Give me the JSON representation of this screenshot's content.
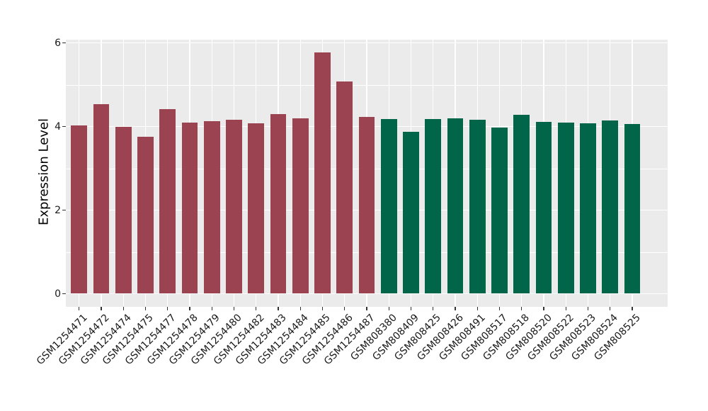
{
  "figure": {
    "background": "#FFFFFF",
    "title": ""
  },
  "chart_data": {
    "type": "bar",
    "title": "",
    "xlabel": "",
    "ylabel": "Expression Level",
    "legend": "none",
    "grid": "on",
    "panel_background": "#EBEBEB",
    "grid_color": "#FFFFFF",
    "axis_text_color": "#1A1A1A",
    "tick_color": "#333333",
    "ylim": [
      -0.31,
      6.07
    ],
    "yticks": [
      0,
      2,
      4,
      6
    ],
    "yminor": [
      1,
      3,
      5
    ],
    "categories": [
      "GSM1254471",
      "GSM1254472",
      "GSM1254474",
      "GSM1254475",
      "GSM1254477",
      "GSM1254478",
      "GSM1254479",
      "GSM1254480",
      "GSM1254482",
      "GSM1254483",
      "GSM1254484",
      "GSM1254485",
      "GSM1254486",
      "GSM1254487",
      "GSM808380",
      "GSM808409",
      "GSM808425",
      "GSM808426",
      "GSM808491",
      "GSM808517",
      "GSM808518",
      "GSM808520",
      "GSM808522",
      "GSM808523",
      "GSM808524",
      "GSM808525"
    ],
    "values": [
      4.03,
      4.53,
      3.99,
      3.76,
      4.41,
      4.1,
      4.12,
      4.16,
      4.07,
      4.3,
      4.19,
      5.77,
      5.08,
      4.23,
      4.18,
      3.88,
      4.17,
      4.2,
      4.16,
      3.97,
      4.28,
      4.11,
      4.09,
      4.08,
      4.14,
      4.06
    ],
    "groups": [
      "group1",
      "group1",
      "group1",
      "group1",
      "group1",
      "group1",
      "group1",
      "group1",
      "group1",
      "group1",
      "group1",
      "group1",
      "group1",
      "group1",
      "group2",
      "group2",
      "group2",
      "group2",
      "group2",
      "group2",
      "group2",
      "group2",
      "group2",
      "group2",
      "group2",
      "group2"
    ],
    "group_colors": {
      "group1": "#9B4351",
      "group2": "#016649"
    }
  }
}
